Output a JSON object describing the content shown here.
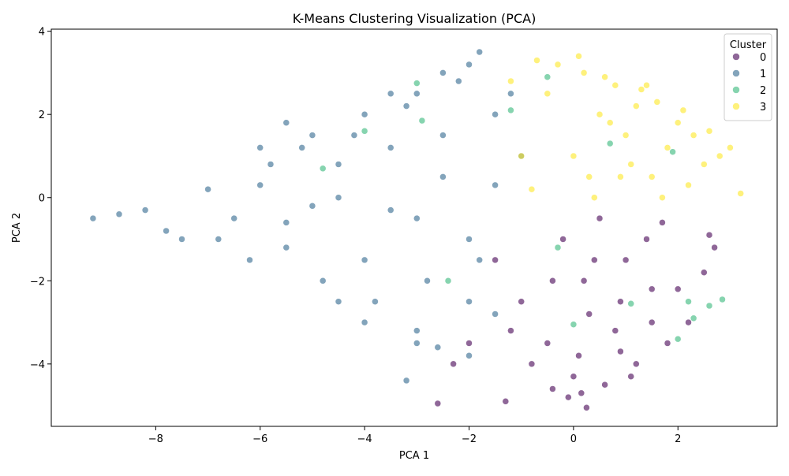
{
  "chart_data": {
    "type": "scatter",
    "title": "K-Means Clustering Visualization (PCA)",
    "xlabel": "PCA 1",
    "ylabel": "PCA 2",
    "xlim": [
      -10.0,
      3.9
    ],
    "ylim": [
      -5.5,
      4.05
    ],
    "xticks": [
      -8,
      -6,
      -4,
      -2,
      0,
      2
    ],
    "yticks": [
      -4,
      -2,
      0,
      2,
      4
    ],
    "xtick_labels": [
      "−8",
      "−6",
      "−4",
      "−2",
      "0",
      "2"
    ],
    "ytick_labels": [
      "−4",
      "−2",
      "0",
      "2",
      "4"
    ],
    "grid": false,
    "legend": {
      "title": "Cluster",
      "placement": "top-right",
      "entries": [
        "0",
        "1",
        "2",
        "3"
      ]
    },
    "colors": {
      "0": "#440154",
      "1": "#31688e",
      "2": "#35b779",
      "3": "#fde725"
    },
    "series": [
      {
        "name": "0",
        "color": "#440154",
        "x": [
          0.2,
          1.0,
          1.5,
          -0.5,
          0.5,
          2.0,
          -1.0,
          1.2,
          0.8,
          -0.2,
          2.5,
          0.0,
          -1.5,
          1.8,
          0.3,
          -0.8,
          1.4,
          2.2,
          0.6,
          -1.2,
          0.9,
          1.7,
          -0.4,
          2.7,
          0.1,
          -2.0,
          -2.3,
          1.1,
          -0.1,
          0.4,
          -1.3,
          0.25,
          -0.4,
          0.9,
          1.5,
          2.6,
          -2.6,
          0.15
        ],
        "y": [
          -2.0,
          -1.5,
          -3.0,
          -3.5,
          -0.5,
          -2.2,
          -2.5,
          -4.0,
          -3.2,
          -1.0,
          -1.8,
          -4.3,
          -1.5,
          -3.5,
          -2.8,
          -4.0,
          -1.0,
          -3.0,
          -4.5,
          -3.2,
          -2.5,
          -0.6,
          -2.0,
          -1.2,
          -3.8,
          -3.5,
          -4.0,
          -4.3,
          -4.8,
          -1.5,
          -4.9,
          -5.05,
          -4.6,
          -3.7,
          -2.2,
          -0.9,
          -4.95,
          -4.7
        ]
      },
      {
        "name": "1",
        "color": "#31688e",
        "x": [
          -9.2,
          -8.7,
          -8.2,
          -7.8,
          -7.5,
          -7.0,
          -6.5,
          -6.0,
          -5.5,
          -5.0,
          -4.5,
          -4.0,
          -3.5,
          -3.0,
          -2.5,
          -2.0,
          -1.5,
          -6.8,
          -6.2,
          -5.8,
          -5.2,
          -4.8,
          -4.2,
          -3.8,
          -3.2,
          -2.8,
          -2.2,
          -1.8,
          -1.2,
          -5.5,
          -4.5,
          -3.5,
          -2.5,
          -1.5,
          -4.0,
          -3.0,
          -2.0,
          -1.5,
          -3.5,
          -2.5,
          -5.0,
          -4.0,
          -3.0,
          -2.0,
          -1.0,
          -6.0,
          -5.5,
          -4.5,
          -3.0,
          -2.0,
          -3.2,
          -2.6,
          -1.8
        ],
        "y": [
          -0.5,
          -0.4,
          -0.3,
          -0.8,
          -1.0,
          0.2,
          -0.5,
          0.3,
          -1.2,
          -0.2,
          0.8,
          -1.5,
          1.2,
          -0.5,
          1.5,
          -1.0,
          2.0,
          -1.0,
          -1.5,
          0.8,
          1.2,
          -2.0,
          1.5,
          -2.5,
          2.2,
          -2.0,
          2.8,
          -1.5,
          2.5,
          -0.6,
          0.0,
          -0.3,
          0.5,
          0.3,
          -3.0,
          -3.2,
          -2.5,
          -2.8,
          2.5,
          3.0,
          1.5,
          2.0,
          2.5,
          3.2,
          1.0,
          1.2,
          1.8,
          -2.5,
          -3.5,
          -3.8,
          -4.4,
          -3.6,
          3.5
        ]
      },
      {
        "name": "2",
        "color": "#35b779",
        "x": [
          -4.0,
          -2.4,
          2.2,
          2.6,
          2.85,
          -3.0,
          0.0,
          1.1,
          -0.5,
          2.0,
          -1.2,
          1.9,
          -4.8,
          -0.3,
          0.7,
          2.3,
          -2.9
        ],
        "y": [
          1.6,
          -2.0,
          -2.5,
          -2.6,
          -2.45,
          2.75,
          -3.05,
          -2.55,
          2.9,
          -3.4,
          2.1,
          1.1,
          0.7,
          -1.2,
          1.3,
          -2.9,
          1.85
        ]
      },
      {
        "name": "3",
        "color": "#fde725",
        "x": [
          0.0,
          0.5,
          1.0,
          1.5,
          2.0,
          2.5,
          -0.5,
          -1.0,
          0.2,
          0.8,
          1.2,
          1.8,
          2.2,
          2.8,
          -0.8,
          0.3,
          0.7,
          1.3,
          1.7,
          2.3,
          -0.3,
          0.1,
          0.6,
          1.1,
          1.6,
          2.1,
          2.6,
          3.0,
          3.2,
          -1.2,
          -0.7,
          0.4,
          0.9,
          1.4
        ],
        "y": [
          1.0,
          2.0,
          1.5,
          0.5,
          1.8,
          0.8,
          2.5,
          1.0,
          3.0,
          2.7,
          2.2,
          1.2,
          0.3,
          1.0,
          0.2,
          0.5,
          1.8,
          2.6,
          0.0,
          1.5,
          3.2,
          3.4,
          2.9,
          0.8,
          2.3,
          2.1,
          1.6,
          1.2,
          0.1,
          2.8,
          3.3,
          0.0,
          0.5,
          2.7
        ]
      }
    ]
  }
}
